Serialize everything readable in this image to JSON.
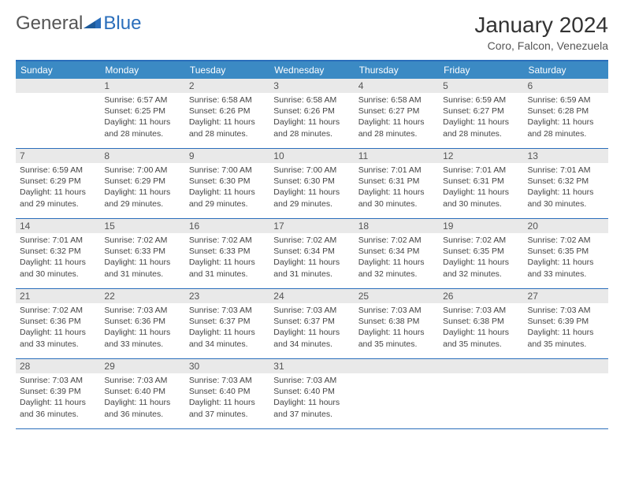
{
  "logo": {
    "text1": "General",
    "text2": "Blue",
    "icon_color": "#2a6ebb"
  },
  "title": "January 2024",
  "location": "Coro, Falcon, Venezuela",
  "colors": {
    "header_bg": "#3b8ac4",
    "header_text": "#ffffff",
    "border": "#2a6ebb",
    "daynum_bg": "#e9e9e9",
    "body_text": "#444444"
  },
  "dow": [
    "Sunday",
    "Monday",
    "Tuesday",
    "Wednesday",
    "Thursday",
    "Friday",
    "Saturday"
  ],
  "first_weekday": 1,
  "days": [
    {
      "n": 1,
      "sr": "6:57 AM",
      "ss": "6:25 PM",
      "dl": "11 hours and 28 minutes."
    },
    {
      "n": 2,
      "sr": "6:58 AM",
      "ss": "6:26 PM",
      "dl": "11 hours and 28 minutes."
    },
    {
      "n": 3,
      "sr": "6:58 AM",
      "ss": "6:26 PM",
      "dl": "11 hours and 28 minutes."
    },
    {
      "n": 4,
      "sr": "6:58 AM",
      "ss": "6:27 PM",
      "dl": "11 hours and 28 minutes."
    },
    {
      "n": 5,
      "sr": "6:59 AM",
      "ss": "6:27 PM",
      "dl": "11 hours and 28 minutes."
    },
    {
      "n": 6,
      "sr": "6:59 AM",
      "ss": "6:28 PM",
      "dl": "11 hours and 28 minutes."
    },
    {
      "n": 7,
      "sr": "6:59 AM",
      "ss": "6:29 PM",
      "dl": "11 hours and 29 minutes."
    },
    {
      "n": 8,
      "sr": "7:00 AM",
      "ss": "6:29 PM",
      "dl": "11 hours and 29 minutes."
    },
    {
      "n": 9,
      "sr": "7:00 AM",
      "ss": "6:30 PM",
      "dl": "11 hours and 29 minutes."
    },
    {
      "n": 10,
      "sr": "7:00 AM",
      "ss": "6:30 PM",
      "dl": "11 hours and 29 minutes."
    },
    {
      "n": 11,
      "sr": "7:01 AM",
      "ss": "6:31 PM",
      "dl": "11 hours and 30 minutes."
    },
    {
      "n": 12,
      "sr": "7:01 AM",
      "ss": "6:31 PM",
      "dl": "11 hours and 30 minutes."
    },
    {
      "n": 13,
      "sr": "7:01 AM",
      "ss": "6:32 PM",
      "dl": "11 hours and 30 minutes."
    },
    {
      "n": 14,
      "sr": "7:01 AM",
      "ss": "6:32 PM",
      "dl": "11 hours and 30 minutes."
    },
    {
      "n": 15,
      "sr": "7:02 AM",
      "ss": "6:33 PM",
      "dl": "11 hours and 31 minutes."
    },
    {
      "n": 16,
      "sr": "7:02 AM",
      "ss": "6:33 PM",
      "dl": "11 hours and 31 minutes."
    },
    {
      "n": 17,
      "sr": "7:02 AM",
      "ss": "6:34 PM",
      "dl": "11 hours and 31 minutes."
    },
    {
      "n": 18,
      "sr": "7:02 AM",
      "ss": "6:34 PM",
      "dl": "11 hours and 32 minutes."
    },
    {
      "n": 19,
      "sr": "7:02 AM",
      "ss": "6:35 PM",
      "dl": "11 hours and 32 minutes."
    },
    {
      "n": 20,
      "sr": "7:02 AM",
      "ss": "6:35 PM",
      "dl": "11 hours and 33 minutes."
    },
    {
      "n": 21,
      "sr": "7:02 AM",
      "ss": "6:36 PM",
      "dl": "11 hours and 33 minutes."
    },
    {
      "n": 22,
      "sr": "7:03 AM",
      "ss": "6:36 PM",
      "dl": "11 hours and 33 minutes."
    },
    {
      "n": 23,
      "sr": "7:03 AM",
      "ss": "6:37 PM",
      "dl": "11 hours and 34 minutes."
    },
    {
      "n": 24,
      "sr": "7:03 AM",
      "ss": "6:37 PM",
      "dl": "11 hours and 34 minutes."
    },
    {
      "n": 25,
      "sr": "7:03 AM",
      "ss": "6:38 PM",
      "dl": "11 hours and 35 minutes."
    },
    {
      "n": 26,
      "sr": "7:03 AM",
      "ss": "6:38 PM",
      "dl": "11 hours and 35 minutes."
    },
    {
      "n": 27,
      "sr": "7:03 AM",
      "ss": "6:39 PM",
      "dl": "11 hours and 35 minutes."
    },
    {
      "n": 28,
      "sr": "7:03 AM",
      "ss": "6:39 PM",
      "dl": "11 hours and 36 minutes."
    },
    {
      "n": 29,
      "sr": "7:03 AM",
      "ss": "6:40 PM",
      "dl": "11 hours and 36 minutes."
    },
    {
      "n": 30,
      "sr": "7:03 AM",
      "ss": "6:40 PM",
      "dl": "11 hours and 37 minutes."
    },
    {
      "n": 31,
      "sr": "7:03 AM",
      "ss": "6:40 PM",
      "dl": "11 hours and 37 minutes."
    }
  ],
  "labels": {
    "sunrise": "Sunrise:",
    "sunset": "Sunset:",
    "daylight": "Daylight:"
  }
}
